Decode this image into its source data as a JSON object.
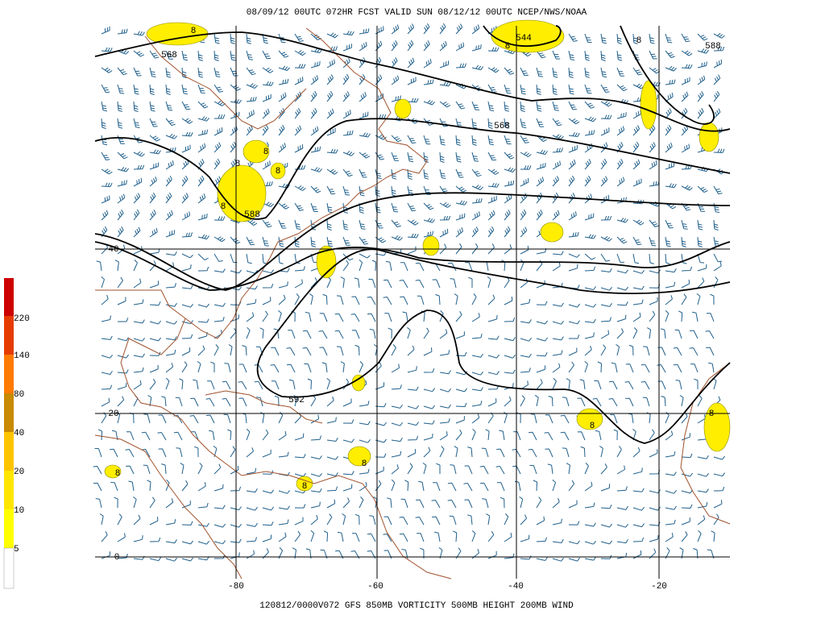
{
  "header": {
    "title": "08/09/12 00UTC  072HR  FCST VALID SUN 08/12/12 00UTC  NCEP/NWS/NOAA"
  },
  "footer": {
    "caption": "120812/0000V072 GFS  850MB VORTICITY 500MB HEIGHT 200MB WIND"
  },
  "latitude_labels": [
    "40",
    "20",
    "0"
  ],
  "longitude_labels": [
    "-80",
    "-60",
    "-40",
    "-20"
  ],
  "color_scale": {
    "labels": [
      "220",
      "140",
      "80",
      "40",
      "20",
      "10",
      "5"
    ]
  },
  "contour_labels": [
    "568",
    "588",
    "544",
    "568",
    "588",
    "592"
  ],
  "vorticity_labels": [
    "8",
    "8",
    "8",
    "8",
    "8",
    "8",
    "8",
    "8",
    "8",
    "8",
    "8",
    "8"
  ]
}
